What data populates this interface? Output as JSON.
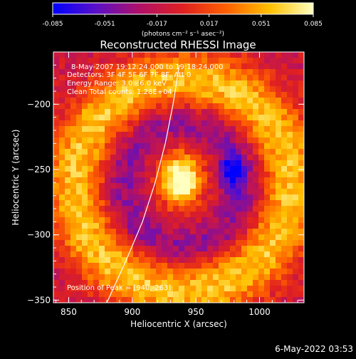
{
  "chart_data": {
    "type": "heatmap",
    "title": "Reconstructed RHESSI Image",
    "xlabel": "Heliocentric X (arcsec)",
    "ylabel": "Heliocentric Y (arcsec)",
    "xlim": [
      838,
      1035
    ],
    "ylim": [
      -352,
      -160
    ],
    "x_ticks": [
      850,
      900,
      950,
      1000
    ],
    "y_ticks": [
      -200,
      -250,
      -300,
      -350
    ],
    "colorbar": {
      "min": -0.085,
      "max": 0.085,
      "ticks": [
        "-0.085",
        "-0.051",
        "-0.017",
        "0.017",
        "0.051",
        "0.085"
      ],
      "unit_label": "(photons cm⁻² s⁻¹ asec⁻²)",
      "colormap": [
        "#0000ff",
        "#5a10c8",
        "#b01068",
        "#e02020",
        "#ff6000",
        "#ffc000",
        "#ffffc0"
      ]
    },
    "annotations": {
      "time_range": "8-May-2007 19:12:24.000 to 19:18:24.000",
      "detectors": "Detectors: 3F 4F 5F 6F 7F 8F, Att 0",
      "energy": "Energy Range: 3.0 - 6.0 keV",
      "clean": "Clean     Total counts: 1.28E+04",
      "peak": "Position of Peak = [940,-263]"
    },
    "peak": {
      "x": 940,
      "y": -263
    },
    "limb_curve": [
      [
        880,
        -352
      ],
      [
        895,
        -320
      ],
      [
        908,
        -290
      ],
      [
        918,
        -260
      ],
      [
        926,
        -230
      ],
      [
        932,
        -200
      ],
      [
        937,
        -170
      ]
    ],
    "features": {
      "core": {
        "x": 938,
        "y": -258,
        "sx": 11,
        "sy": 14,
        "value": 0.085
      },
      "ring": {
        "cx": 940,
        "cy": -262,
        "r": 85,
        "width": 16,
        "value": 0.045
      },
      "inner_ring": {
        "cx": 940,
        "cy": -262,
        "r": 48,
        "width": 10,
        "value": -0.03
      },
      "blue_spot": {
        "x": 978,
        "y": -252,
        "sx": 6,
        "sy": 9,
        "value": -0.07
      }
    },
    "background_value": -0.012
  },
  "footer_date": "6-May-2022 03:53"
}
